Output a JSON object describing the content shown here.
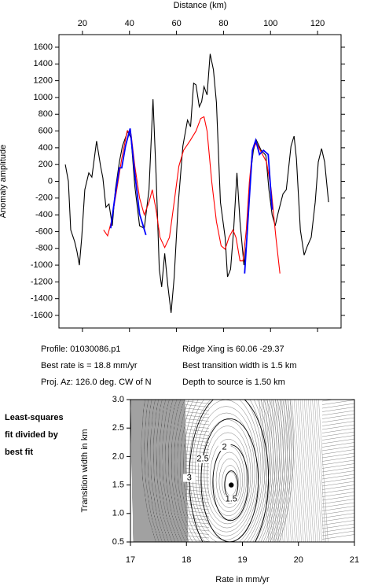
{
  "info": {
    "profile": "Profile: 01030086.p1",
    "rate": "Best rate is = 18.8 mm/yr",
    "azimuth": "Proj. Az: 126.0 deg. CW of N",
    "ridge": "Ridge Xing is 60.06 -29.37",
    "width": "Best transition width is 1.5 km",
    "depth": "Depth to source is   1.50 km"
  },
  "note_lines": [
    "Least-squares",
    "fit divided by",
    "best fit"
  ],
  "chart_data": [
    {
      "type": "line",
      "xlabel": "Distance (km)",
      "ylabel": "Anomaly amplitude",
      "xlim": [
        10,
        130
      ],
      "xticks": [
        20,
        40,
        60,
        80,
        100,
        120
      ],
      "ylim": [
        -1750,
        1750
      ],
      "yticks": [
        -1600,
        -1400,
        -1200,
        -1000,
        -800,
        -600,
        -400,
        -200,
        0,
        200,
        400,
        600,
        800,
        1000,
        1200,
        1400,
        1600
      ],
      "series": [
        {
          "color": "#000000",
          "x": [
            12.7,
            14,
            15,
            16.7,
            17.7,
            18.7,
            19.7,
            21,
            22.7,
            24,
            26,
            27.7,
            28.7,
            30,
            31.3,
            32.7,
            34,
            35.7,
            37,
            39.3,
            40.7,
            42.3,
            44.3,
            46.3,
            48.3,
            50,
            51.3,
            52.7,
            53.7,
            55,
            56.3,
            57.7,
            59,
            60.7,
            62.7,
            64.7,
            66,
            67.3,
            68.3,
            69.7,
            70.7,
            71.7,
            73,
            74.3,
            75.7,
            77,
            78.7,
            80.7,
            81.7,
            83,
            84.3,
            85.7,
            87,
            88.7,
            90,
            91.3,
            92.7,
            94,
            96,
            98,
            99.3,
            100.7,
            102,
            103.3,
            105.3,
            106.7,
            108.7,
            110,
            111,
            112.7,
            114.3,
            115.7,
            117.3,
            119,
            120.3,
            121.7,
            123,
            124.7
          ],
          "values": [
            200,
            0,
            -580,
            -720,
            -840,
            -1000,
            -670,
            -100,
            100,
            50,
            480,
            180,
            40,
            -310,
            -270,
            -530,
            -100,
            230,
            420,
            600,
            510,
            -60,
            -530,
            -560,
            -100,
            980,
            80,
            -1050,
            -1260,
            -860,
            -1240,
            -1570,
            -1150,
            -280,
            420,
            730,
            650,
            1170,
            1150,
            890,
            950,
            1130,
            1030,
            1520,
            1330,
            940,
            -250,
            -670,
            -1140,
            -1050,
            -580,
            100,
            -480,
            -1000,
            -670,
            40,
            370,
            490,
            370,
            310,
            -100,
            -400,
            -530,
            -370,
            -150,
            -100,
            420,
            540,
            270,
            -580,
            -880,
            -770,
            -670,
            -250,
            230,
            390,
            230,
            -250
          ]
        },
        {
          "color": "#ff0000",
          "x": [
            29,
            30.7,
            32.3,
            34.3,
            36.7,
            39,
            40.7,
            42.3,
            44.3,
            46.3,
            48.3,
            49.7,
            51.3,
            53,
            55,
            57,
            59,
            61,
            63,
            65.7,
            68.3,
            70.3,
            71.7,
            73,
            75,
            77,
            79,
            80.7,
            82.3,
            84,
            85.3,
            87,
            88.3,
            89.7,
            91,
            92.3,
            94,
            96,
            98.3,
            100.3,
            102.3,
            104
          ],
          "values": [
            -580,
            -650,
            -480,
            -150,
            270,
            600,
            560,
            180,
            -200,
            -400,
            -250,
            -100,
            -340,
            -670,
            -790,
            -670,
            -250,
            180,
            370,
            480,
            600,
            750,
            770,
            600,
            -10,
            -480,
            -770,
            -810,
            -670,
            -580,
            -670,
            -950,
            -950,
            -580,
            -10,
            370,
            460,
            350,
            230,
            -100,
            -670,
            -1100
          ]
        },
        {
          "color": "#0000ff",
          "x": [
            32,
            34,
            35.7,
            36.7,
            38.3,
            40.3,
            42.3,
            44.3,
            47,
            null,
            89,
            91,
            92.3,
            93.7,
            95.3,
            97,
            99,
            100.7
          ],
          "values": [
            -560,
            -150,
            160,
            160,
            420,
            630,
            90,
            -390,
            -640,
            null,
            -1100,
            -200,
            370,
            490,
            320,
            370,
            320,
            -340
          ]
        }
      ]
    },
    {
      "type": "contour",
      "xlabel": "Rate in mm/yr",
      "ylabel": "Transition width in km",
      "xlim": [
        17,
        21
      ],
      "xticks": [
        17,
        18,
        19,
        20,
        21
      ],
      "ylim": [
        0.5,
        3.0
      ],
      "yticks": [
        0.5,
        {
          "value": 1,
          "label": "1.0"
        },
        1.5,
        {
          "value": 2,
          "label": "2.0"
        },
        2.5,
        {
          "value": 3,
          "label": "3.0"
        }
      ],
      "levels": [
        1.5,
        2,
        2.5,
        3
      ],
      "best_fit": {
        "x": 18.8,
        "y": 1.5
      }
    }
  ]
}
